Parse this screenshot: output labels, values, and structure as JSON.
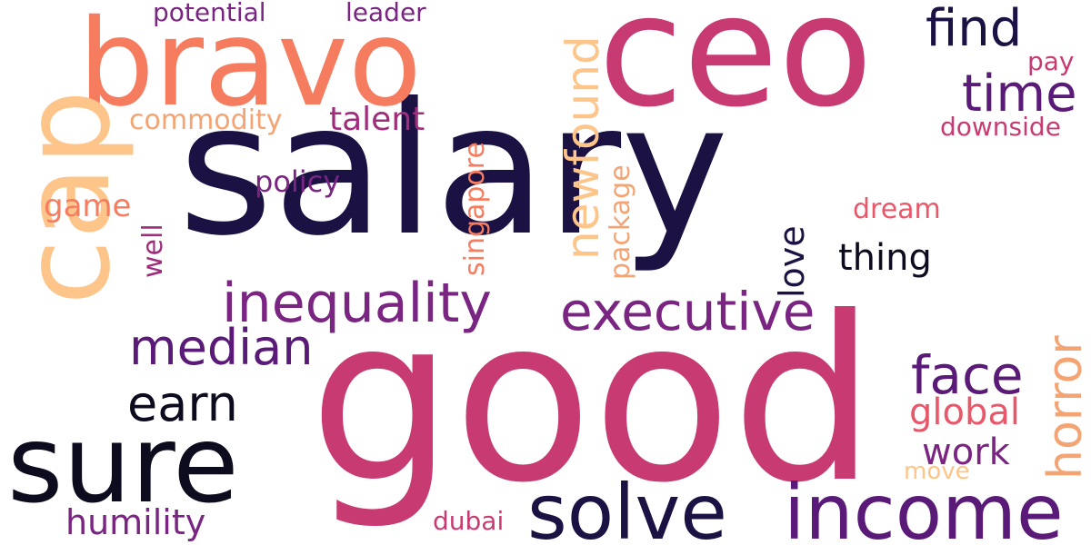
{
  "palette": {
    "navy": "#1b1142",
    "black": "#0d0b1e",
    "magenta": "#c83b72",
    "coral": "#f67c5f",
    "peach": "#fdc589",
    "purple": "#7a2582",
    "pink": "#e8586a",
    "violet": "#5a1a77",
    "salmon": "#f4a473"
  },
  "words": [
    {
      "text": "salary",
      "color": "#1b1142"
    },
    {
      "text": "good",
      "color": "#c83b72"
    },
    {
      "text": "ceo",
      "color": "#c83b72"
    },
    {
      "text": "bravo",
      "color": "#f67c5f"
    },
    {
      "text": "cap",
      "color": "#fdc589"
    },
    {
      "text": "sure",
      "color": "#0d0b1e"
    },
    {
      "text": "income",
      "color": "#5a1a77"
    },
    {
      "text": "solve",
      "color": "#1b1142"
    },
    {
      "text": "find",
      "color": "#1b1142"
    },
    {
      "text": "time",
      "color": "#5a1a77"
    },
    {
      "text": "inequality",
      "color": "#7a2582"
    },
    {
      "text": "executive",
      "color": "#7a2582"
    },
    {
      "text": "median",
      "color": "#5a1a77"
    },
    {
      "text": "earn",
      "color": "#0d0b1e"
    },
    {
      "text": "face",
      "color": "#5a1a77"
    },
    {
      "text": "newfound",
      "color": "#fdc589"
    },
    {
      "text": "horror",
      "color": "#f4a473"
    },
    {
      "text": "talent",
      "color": "#a02c7c"
    },
    {
      "text": "thing",
      "color": "#0d0b1e"
    },
    {
      "text": "love",
      "color": "#1b1142"
    },
    {
      "text": "global",
      "color": "#e8586a"
    },
    {
      "text": "work",
      "color": "#7a2582"
    },
    {
      "text": "humility",
      "color": "#7a2582"
    },
    {
      "text": "game",
      "color": "#f67c5f"
    },
    {
      "text": "policy",
      "color": "#7a2582"
    },
    {
      "text": "dream",
      "color": "#e8586a"
    },
    {
      "text": "commodity",
      "color": "#f4a473"
    },
    {
      "text": "potential",
      "color": "#7a2582"
    },
    {
      "text": "leader",
      "color": "#7a2582"
    },
    {
      "text": "pay",
      "color": "#c83b72"
    },
    {
      "text": "downside",
      "color": "#c83b72"
    },
    {
      "text": "singapore",
      "color": "#f67c5f"
    },
    {
      "text": "package",
      "color": "#f4a473"
    },
    {
      "text": "well",
      "color": "#a02c7c"
    },
    {
      "text": "dubai",
      "color": "#c83b72"
    },
    {
      "text": "move",
      "color": "#fdc589"
    }
  ]
}
